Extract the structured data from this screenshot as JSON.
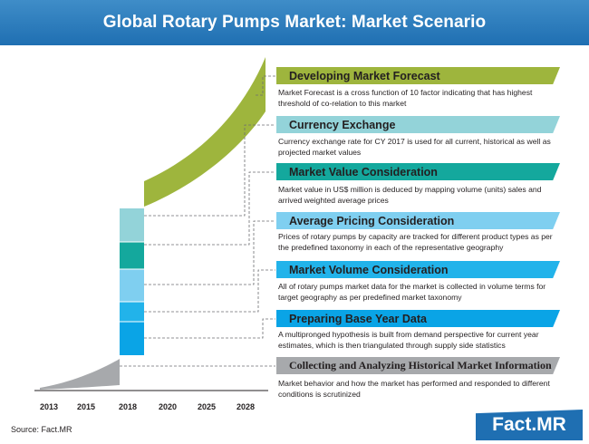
{
  "header": {
    "title": "Global Rotary Pumps Market: Market Scenario"
  },
  "axis": {
    "years": [
      "2013",
      "2015",
      "2018",
      "2020",
      "2025",
      "2028"
    ]
  },
  "steps": [
    {
      "title": "Developing Market Forecast",
      "description": "Market Forecast is a cross function of 10 factor indicating that has highest threshold of co-relation to this market",
      "color": "#9eb53d"
    },
    {
      "title": "Currency Exchange",
      "description": "Currency exchange rate for CY 2017 is used for all current, historical as well as projected market values",
      "color": "#93d3d9"
    },
    {
      "title": "Market Value Consideration",
      "description": "Market value in US$ million is deduced by mapping volume (units) sales and arrived weighted average prices",
      "color": "#14a89d"
    },
    {
      "title": "Average Pricing Consideration",
      "description": "Prices of rotary pumps by capacity are tracked for different product types as per the predefined taxonomy in each of the representative geography",
      "color": "#7fcff0"
    },
    {
      "title": "Market Volume Consideration",
      "description": "All of rotary pumps market data for the market is collected in volume terms for target geography as per predefined market taxonomy",
      "color": "#22b3ea"
    },
    {
      "title": "Preparing Base Year Data",
      "description": "A multipronged hypothesis is built from demand perspective for current year estimates, which is then triangulated through supply side statistics",
      "color": "#0aa4e6"
    },
    {
      "title": "Collecting and Analyzing Historical Market Information",
      "description": "Market behavior and how the market has performed and responded to different conditions is scrutinized",
      "color": "#a7a9ac"
    }
  ],
  "footer": {
    "source": "Source: Fact.MR",
    "logo": "Fact.MR",
    "logo_color": "#1f6fb2"
  }
}
